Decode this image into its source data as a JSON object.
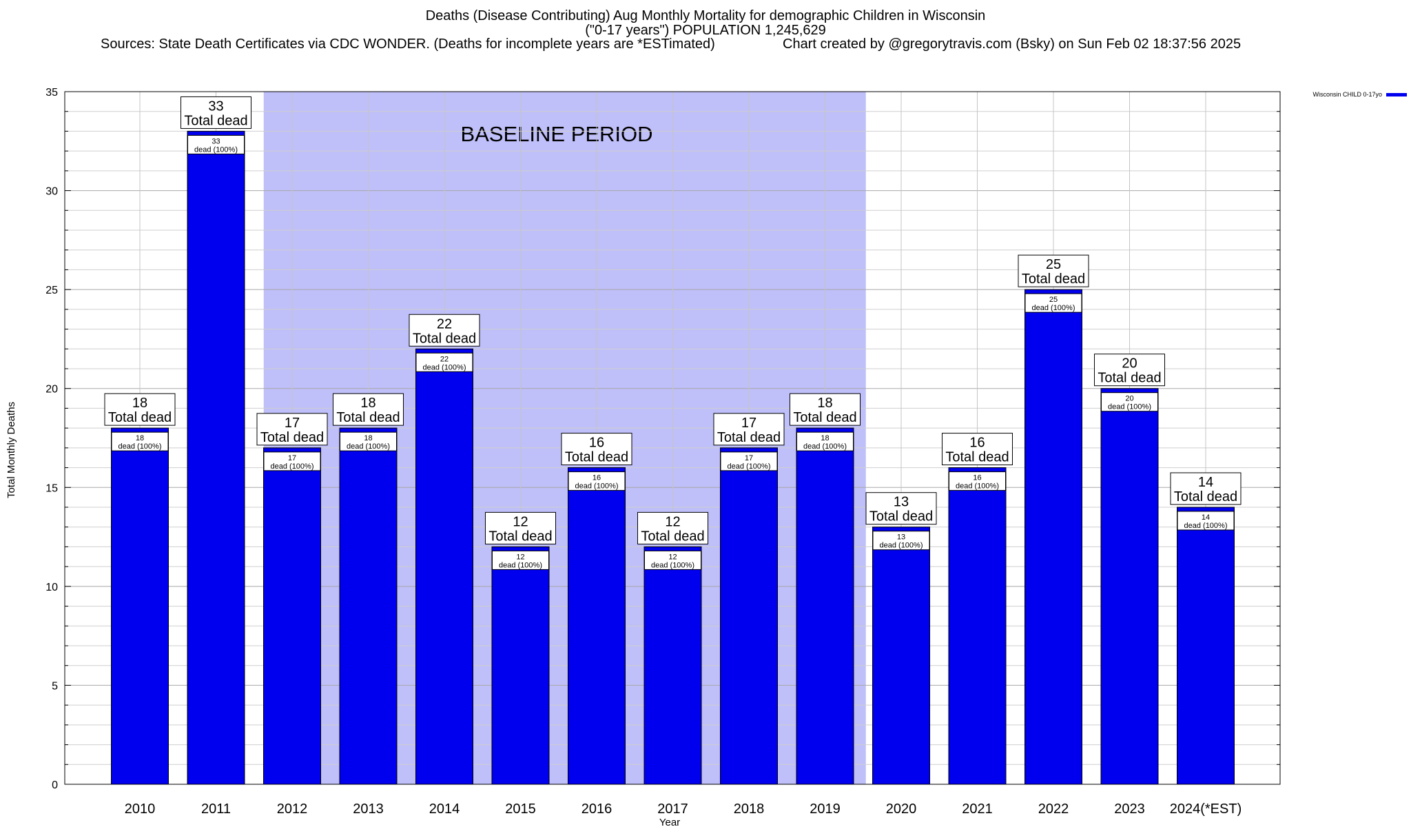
{
  "chart_data": {
    "type": "bar",
    "title": "Deaths (Disease Contributing) Aug Monthly Mortality for demographic Children in Wisconsin",
    "subtitle": "(\"0-17 years\") POPULATION 1,245,629",
    "sources": "Sources: State Death Certificates via CDC WONDER. (Deaths for incomplete years are *ESTimated)",
    "credit": "Chart created by @gregorytravis.com (Bsky) on Sun Feb 02 18:37:56 2025",
    "xlabel": "Year",
    "ylabel": "Total Monthly Deaths",
    "ylim": [
      0,
      35
    ],
    "yticks": [
      "0",
      "5",
      "10",
      "15",
      "20",
      "25",
      "30",
      "35"
    ],
    "categories": [
      "2010",
      "2011",
      "2012",
      "2013",
      "2014",
      "2015",
      "2016",
      "2017",
      "2018",
      "2019",
      "2020",
      "2021",
      "2022",
      "2023",
      "2024(*EST)"
    ],
    "series": [
      {
        "name": "Wisconsin CHILD 0-17yo",
        "color": "#0000ee",
        "values": [
          18,
          33,
          17,
          18,
          22,
          12,
          16,
          12,
          17,
          18,
          13,
          16,
          25,
          20,
          14
        ]
      }
    ],
    "total_labels": [
      "18",
      "33",
      "17",
      "18",
      "22",
      "12",
      "16",
      "12",
      "17",
      "18",
      "13",
      "16",
      "25",
      "20",
      "14"
    ],
    "total_label_text": "Total dead",
    "inner_labels": [
      "18",
      "33",
      "17",
      "18",
      "22",
      "12",
      "16",
      "12",
      "17",
      "18",
      "13",
      "16",
      "25",
      "20",
      "14"
    ],
    "inner_label_text": "dead (100%)",
    "annotation": {
      "text": "BASELINE PERIOD",
      "span": [
        "2012",
        "2019"
      ],
      "color": "#bfbff9"
    },
    "grid": true,
    "legend_placement": "top-right"
  }
}
